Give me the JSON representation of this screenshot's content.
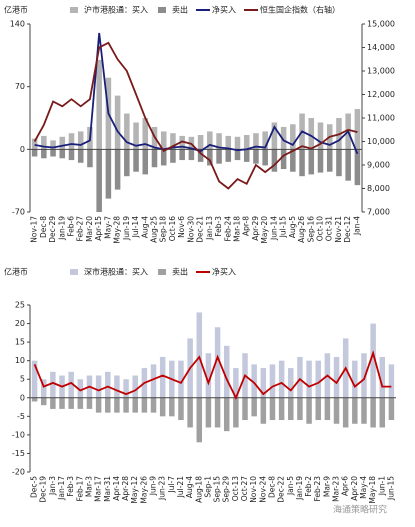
{
  "chart_data": [
    {
      "type": "bar",
      "y_label": "亿港币",
      "categories": [
        "Nov-17",
        "Dec-8",
        "Dec-29",
        "Jan-19",
        "Feb-6",
        "Feb-27",
        "Mar-20",
        "Apr-15",
        "May-7",
        "May-28",
        "Jun-19",
        "Jul-14",
        "Aug-4",
        "Aug-25",
        "Sep-18",
        "Oct-16",
        "Nov-6",
        "Nov-30",
        "Dec-21",
        "Jan-13",
        "Feb-3",
        "Feb-24",
        "Mar-18",
        "Apr-8",
        "Apr-29",
        "May-20",
        "Jun-14",
        "Jul-15",
        "Aug-5",
        "Aug-26",
        "Sep-16",
        "Oct-10",
        "Oct-31",
        "Nov-21",
        "Dec-12",
        "Jan-4"
      ],
      "series": [
        {
          "name": "沪市港股通：买入",
          "type": "bar",
          "color": "#b4b4b4",
          "values": [
            12,
            15,
            10,
            14,
            18,
            20,
            25,
            100,
            80,
            60,
            40,
            30,
            35,
            25,
            20,
            18,
            15,
            14,
            16,
            20,
            18,
            15,
            14,
            16,
            18,
            20,
            30,
            25,
            28,
            40,
            35,
            30,
            28,
            35,
            40,
            45
          ]
        },
        {
          "name": "卖出",
          "type": "bar",
          "color": "#8c8c8c",
          "values": [
            -8,
            -10,
            -8,
            -10,
            -12,
            -15,
            -20,
            -70,
            -55,
            -45,
            -30,
            -25,
            -28,
            -20,
            -18,
            -15,
            -12,
            -12,
            -14,
            -18,
            -16,
            -14,
            -12,
            -14,
            -16,
            -18,
            -25,
            -22,
            -25,
            -30,
            -28,
            -26,
            -25,
            -30,
            -35,
            -40
          ]
        },
        {
          "name": "净买入",
          "type": "line",
          "color": "#1a1f7a",
          "values": [
            5,
            3,
            2,
            4,
            6,
            5,
            10,
            130,
            40,
            20,
            8,
            4,
            6,
            2,
            0,
            2,
            3,
            1,
            -2,
            5,
            2,
            1,
            -1,
            0,
            3,
            2,
            25,
            10,
            5,
            20,
            15,
            8,
            5,
            10,
            20,
            -5
          ]
        },
        {
          "name": "恒生国企指数（右轴）",
          "type": "line",
          "axis": "y2",
          "color": "#7a1a1a",
          "values": [
            10000,
            10700,
            11700,
            11500,
            11800,
            11500,
            11800,
            14000,
            14200,
            13500,
            13000,
            12000,
            11000,
            10200,
            9600,
            9800,
            10000,
            9900,
            9500,
            9200,
            8300,
            8000,
            8400,
            8200,
            9000,
            8700,
            9000,
            9400,
            9600,
            9800,
            9700,
            9900,
            10200,
            10300,
            10500,
            10400
          ]
        }
      ],
      "ylim": [
        -70,
        140
      ],
      "yticks": [
        -70,
        0,
        70,
        140
      ],
      "y2lim": [
        7000,
        15000
      ],
      "y2ticks": [
        {
          "value": 7000,
          "label": "7,000"
        },
        {
          "value": 8000,
          "label": "8,000"
        },
        {
          "value": 9000,
          "label": "9,000"
        },
        {
          "value": 10000,
          "label": "10,000"
        },
        {
          "value": 11000,
          "label": "11,000"
        },
        {
          "value": 12000,
          "label": "12,000"
        },
        {
          "value": 13000,
          "label": "13,000"
        },
        {
          "value": 14000,
          "label": "14,000"
        },
        {
          "value": 15000,
          "label": "15,000"
        }
      ]
    },
    {
      "type": "bar",
      "y_label": "亿港币",
      "categories": [
        "Dec-5",
        "Dec-19",
        "Jan-3",
        "Jan-17",
        "Feb-3",
        "Feb-17",
        "Mar-3",
        "Mar-17",
        "Mar-31",
        "Apr-14",
        "Apr-28",
        "May-12",
        "May-26",
        "Jun-9",
        "Jun-23",
        "Jul-7",
        "Jul-21",
        "Aug-4",
        "Aug-18",
        "Sep-1",
        "Sep-15",
        "Sep-29",
        "Oct-13",
        "Oct-27",
        "Nov-10",
        "Nov-24",
        "Dec-8",
        "Dec-22",
        "Jan-5",
        "Jan-19",
        "Feb-2",
        "Feb-23",
        "Mar-9",
        "Mar-23",
        "Apr-6",
        "Apr-20",
        "May-4",
        "May-18",
        "Jun-1",
        "Jun-15"
      ],
      "series": [
        {
          "name": "深市港股通：买入",
          "type": "bar",
          "color": "#c3c8dc",
          "values": [
            10,
            5,
            7,
            6,
            7,
            5,
            6,
            6,
            7,
            6,
            5,
            6,
            8,
            9,
            11,
            10,
            10,
            16,
            23,
            12,
            19,
            14,
            8,
            12,
            9,
            8,
            9,
            10,
            8,
            11,
            10,
            10,
            12,
            11,
            16,
            10,
            12,
            20,
            11,
            9
          ]
        },
        {
          "name": "卖出",
          "type": "bar",
          "color": "#a0a0a0",
          "values": [
            -1,
            -2,
            -3,
            -3,
            -3,
            -3,
            -3,
            -4,
            -4,
            -4,
            -4,
            -4,
            -4,
            -4,
            -5,
            -5,
            -6,
            -8,
            -12,
            -8,
            -8,
            -9,
            -8,
            -6,
            -5,
            -7,
            -6,
            -6,
            -6,
            -6,
            -7,
            -6,
            -6,
            -7,
            -8,
            -7,
            -7,
            -8,
            -8,
            -6
          ]
        },
        {
          "name": "净买入",
          "type": "line",
          "color": "#c00000",
          "values": [
            9,
            3,
            4,
            3,
            4,
            2,
            3,
            2,
            3,
            2,
            1,
            2,
            4,
            5,
            6,
            5,
            4,
            8,
            11,
            4,
            11,
            5,
            0,
            6,
            4,
            1,
            3,
            4,
            2,
            5,
            3,
            4,
            6,
            4,
            8,
            3,
            5,
            12,
            3,
            3
          ]
        }
      ],
      "ylim": [
        -20,
        25
      ],
      "yticks": [
        -20,
        -15,
        -10,
        -5,
        0,
        5,
        10,
        15,
        20,
        25
      ]
    }
  ],
  "watermark": "海通策略研究"
}
